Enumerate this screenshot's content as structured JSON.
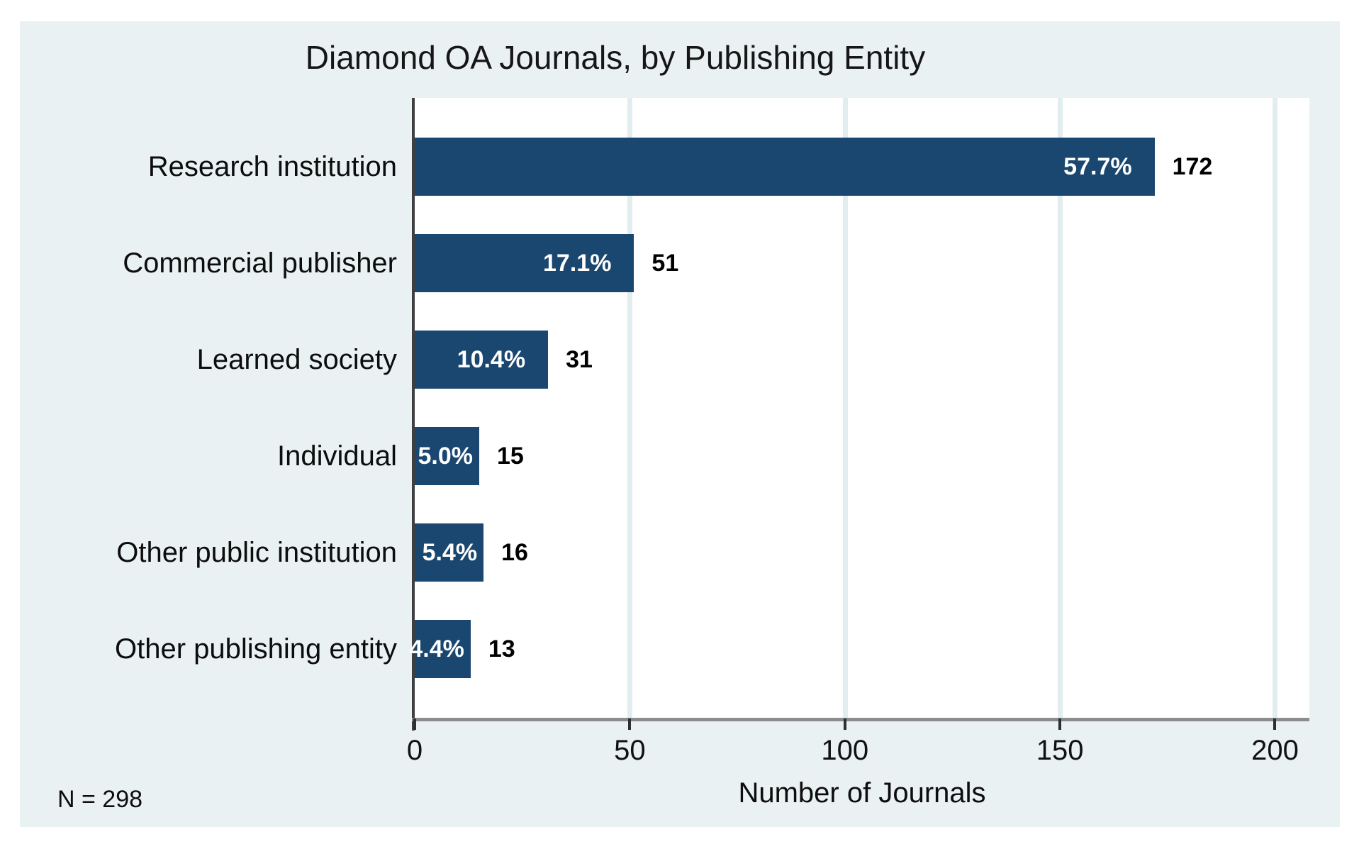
{
  "chart_data": {
    "type": "bar",
    "orientation": "horizontal",
    "title": "Diamond OA Journals, by Publishing Entity",
    "categories": [
      "Research institution",
      "Commercial publisher",
      "Learned society",
      "Individual",
      "Other public institution",
      "Other publishing entity"
    ],
    "values": [
      172,
      51,
      31,
      15,
      16,
      13
    ],
    "percent_labels": [
      "57.7%",
      "17.1%",
      "10.4%",
      "5.0%",
      "5.4%",
      "4.4%"
    ],
    "count_labels": [
      "172",
      "51",
      "31",
      "15",
      "16",
      "13"
    ],
    "xlabel": "Number of Journals",
    "x_ticks": [
      0,
      50,
      100,
      150,
      200
    ],
    "xlim": [
      0,
      208
    ],
    "grid": true,
    "legend": "none",
    "note": "N = 298",
    "colors": {
      "bar": "#1a476f",
      "figure_background": "#eaf1f3",
      "plot_background": "#ffffff",
      "gridline": "#e2edf0",
      "y_axis_line": "#3f3f3f",
      "x_axis_line": "#8c8c8c",
      "bar_label_text": "#ffffff",
      "text": "#0d0d0d"
    }
  }
}
